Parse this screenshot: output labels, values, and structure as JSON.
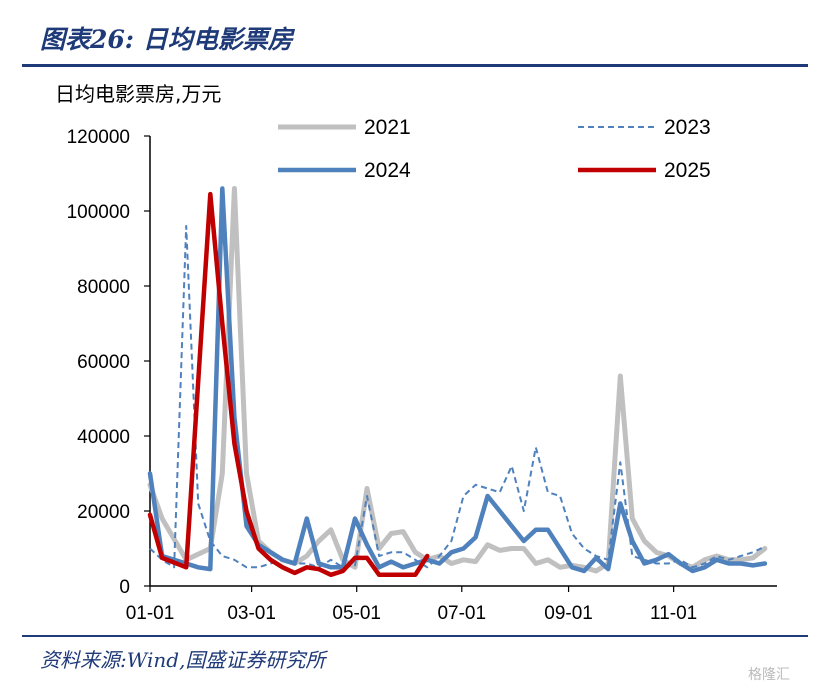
{
  "header": {
    "title": "图表26:  日均电影票房"
  },
  "footer": {
    "source": "资料来源:Wind,国盛证券研究所",
    "watermark": "格隆汇"
  },
  "chart_data": {
    "type": "line",
    "title": "图表26:  日均电影票房",
    "ylabel": "日均电影票房,万元",
    "xlabel": "",
    "xlim": [
      "01-01",
      "12-31"
    ],
    "ylim": [
      0,
      120000
    ],
    "x_ticks": [
      "01-01",
      "03-01",
      "05-01",
      "07-01",
      "09-01",
      "11-01"
    ],
    "y_ticks": [
      0,
      20000,
      40000,
      60000,
      80000,
      100000,
      120000
    ],
    "grid": false,
    "legend": "top",
    "x_unit": "day of year",
    "series": [
      {
        "name": "2021",
        "color": "#c0c0c0",
        "style": "solid",
        "x": [
          1,
          8,
          22,
          36,
          43,
          50,
          57,
          64,
          71,
          78,
          85,
          92,
          99,
          106,
          113,
          120,
          127,
          134,
          141,
          148,
          155,
          162,
          169,
          176,
          183,
          190,
          197,
          204,
          211,
          218,
          225,
          232,
          239,
          246,
          253,
          260,
          267,
          274,
          281,
          288,
          295,
          302,
          309,
          316,
          323,
          330,
          337,
          344,
          351,
          358
        ],
        "y": [
          27000,
          18000,
          7000,
          10000,
          30000,
          106000,
          30000,
          12000,
          9000,
          7000,
          6000,
          8000,
          12000,
          15000,
          7000,
          5000,
          26000,
          10000,
          14000,
          14500,
          9000,
          7000,
          8000,
          6000,
          7000,
          6500,
          11000,
          9500,
          10000,
          10000,
          6000,
          7000,
          5000,
          5500,
          5000,
          4000,
          6000,
          56000,
          18000,
          12000,
          9000,
          8000,
          6000,
          5000,
          7000,
          8000,
          7000,
          7000,
          7500,
          10000
        ]
      },
      {
        "name": "2023",
        "color": "#4f81bd",
        "style": "dashed",
        "x": [
          1,
          8,
          15,
          22,
          29,
          36,
          43,
          50,
          57,
          64,
          71,
          78,
          85,
          92,
          99,
          106,
          113,
          120,
          127,
          134,
          141,
          148,
          155,
          162,
          169,
          176,
          183,
          190,
          197,
          204,
          211,
          218,
          225,
          232,
          239,
          246,
          253,
          260,
          267,
          274,
          281,
          288,
          295,
          302,
          309,
          316,
          323,
          330,
          337,
          344,
          351,
          358
        ],
        "y": [
          10000,
          7000,
          5000,
          96000,
          22000,
          12000,
          8000,
          7000,
          5000,
          5000,
          6000,
          7000,
          6000,
          6000,
          5000,
          7000,
          5000,
          5500,
          24000,
          8000,
          9000,
          9000,
          7000,
          5000,
          8000,
          12000,
          24000,
          27000,
          26000,
          25000,
          32000,
          20000,
          37000,
          25000,
          24000,
          14000,
          10000,
          8000,
          7000,
          33000,
          8000,
          7000,
          6000,
          6000,
          7000,
          5000,
          6000,
          8000,
          7000,
          8000,
          9000,
          10500
        ]
      },
      {
        "name": "2024",
        "color": "#4f81bd",
        "style": "solid",
        "x": [
          1,
          8,
          15,
          22,
          29,
          36,
          43,
          50,
          57,
          64,
          71,
          78,
          85,
          92,
          99,
          106,
          113,
          120,
          127,
          134,
          141,
          148,
          155,
          162,
          169,
          176,
          183,
          190,
          197,
          204,
          211,
          218,
          225,
          232,
          239,
          246,
          253,
          260,
          267,
          274,
          281,
          288,
          295,
          302,
          309,
          316,
          323,
          330,
          337,
          344,
          351,
          358
        ],
        "y": [
          30000,
          8000,
          7000,
          6000,
          5000,
          4500,
          106000,
          45000,
          16000,
          11000,
          9000,
          7000,
          6000,
          18000,
          6000,
          5000,
          5000,
          18000,
          11000,
          5000,
          6500,
          5000,
          6000,
          7000,
          6000,
          9000,
          10000,
          13000,
          24000,
          20000,
          16000,
          12000,
          15000,
          15000,
          10000,
          5000,
          4000,
          7500,
          4500,
          22000,
          12000,
          6000,
          7000,
          8500,
          6000,
          4000,
          5000,
          7000,
          6000,
          6000,
          5500,
          6000
        ]
      },
      {
        "name": "2025",
        "color": "#c00000",
        "style": "solid",
        "x": [
          1,
          8,
          22,
          36,
          43,
          50,
          57,
          64,
          71,
          78,
          85,
          92,
          99,
          106,
          113,
          120,
          127,
          134,
          141,
          148,
          155,
          162
        ],
        "y": [
          19000,
          7500,
          5000,
          104500,
          70000,
          38000,
          20000,
          10000,
          7000,
          5000,
          3500,
          5000,
          4500,
          3000,
          4000,
          7500,
          7500,
          3000,
          3000,
          3000,
          3000,
          8000
        ]
      }
    ]
  }
}
